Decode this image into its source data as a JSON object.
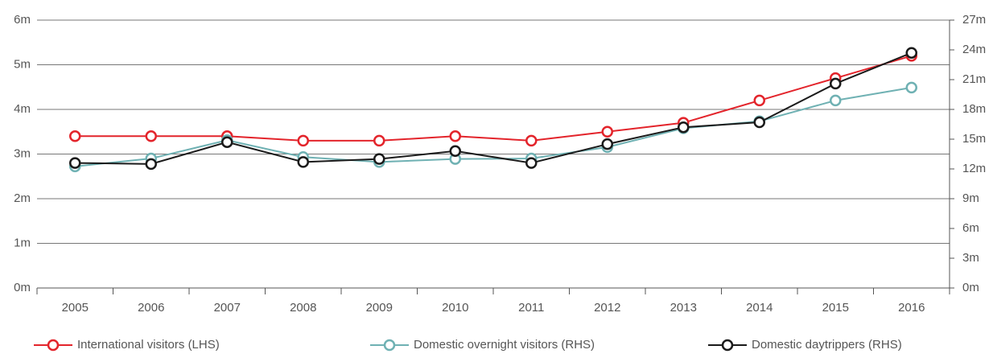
{
  "chart_data": {
    "type": "line",
    "categories": [
      "2005",
      "2006",
      "2007",
      "2008",
      "2009",
      "2010",
      "2011",
      "2012",
      "2013",
      "2014",
      "2015",
      "2016"
    ],
    "series": [
      {
        "name": "International visitors (LHS)",
        "color": "#e3242b",
        "values": [
          3.4,
          3.4,
          3.4,
          3.3,
          3.3,
          3.4,
          3.3,
          3.5,
          3.7,
          4.2,
          4.7,
          5.2
        ]
      },
      {
        "name": "Domestic overnight visitors (RHS)",
        "color": "#6fb1b3",
        "axis": "y2",
        "values": [
          12.25,
          13.05,
          14.9,
          13.2,
          12.7,
          13.0,
          13.05,
          14.2,
          16.1,
          16.8,
          18.9,
          20.2
        ]
      },
      {
        "name": "Domestic daytrippers (RHS)",
        "color": "#1a1a1a",
        "axis": "y2",
        "values": [
          12.6,
          12.5,
          14.7,
          12.7,
          13.0,
          13.8,
          12.6,
          14.5,
          16.2,
          16.7,
          20.6,
          23.7
        ]
      }
    ],
    "ylim": [
      0,
      6
    ],
    "yticks": [
      {
        "value": 0,
        "label": "0m"
      },
      {
        "value": 1,
        "label": "1m"
      },
      {
        "value": 2,
        "label": "2m"
      },
      {
        "value": 3,
        "label": "3m"
      },
      {
        "value": 4,
        "label": "4m"
      },
      {
        "value": 5,
        "label": "5m"
      },
      {
        "value": 6,
        "label": "6m"
      }
    ],
    "y2lim": [
      0,
      27
    ],
    "y2ticks": [
      {
        "value": 0,
        "label": "0m"
      },
      {
        "value": 3,
        "label": "3m"
      },
      {
        "value": 6,
        "label": "6m"
      },
      {
        "value": 9,
        "label": "9m"
      },
      {
        "value": 12,
        "label": "12m"
      },
      {
        "value": 15,
        "label": "15m"
      },
      {
        "value": 18,
        "label": "18m"
      },
      {
        "value": 21,
        "label": "21m"
      },
      {
        "value": 24,
        "label": "24m"
      },
      {
        "value": 27,
        "label": "27m"
      }
    ],
    "grid": true
  }
}
